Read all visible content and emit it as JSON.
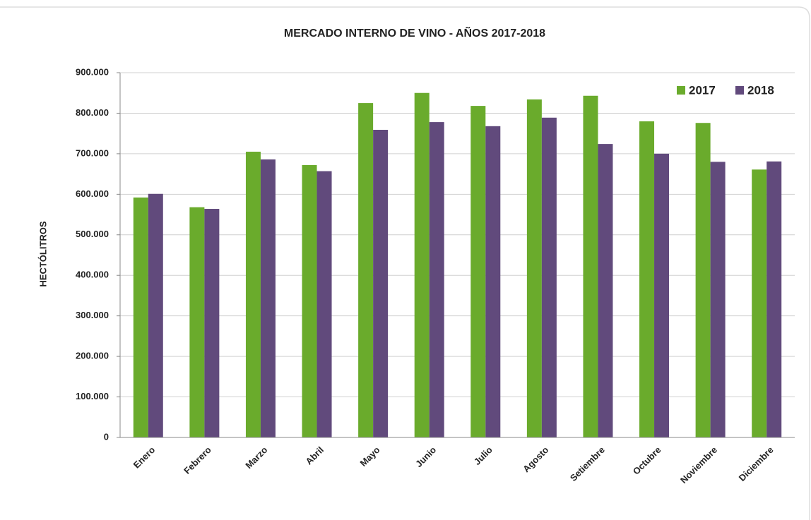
{
  "chart_data": {
    "type": "bar",
    "title": "MERCADO INTERNO DE VINO - AÑOS 2017-2018",
    "ylabel": "HECTÓLITROS",
    "categories": [
      "Enero",
      "Febrero",
      "Marzo",
      "Abril",
      "Mayo",
      "Junio",
      "Julio",
      "Agosto",
      "Setiembre",
      "Octubre",
      "Noviembre",
      "Diciembre"
    ],
    "series": [
      {
        "name": "2017",
        "color": "#6aab2c",
        "values": [
          592000,
          568000,
          705000,
          672000,
          825000,
          850000,
          818000,
          834000,
          843000,
          780000,
          776000,
          661000
        ]
      },
      {
        "name": "2018",
        "color": "#614a7c",
        "values": [
          601000,
          564000,
          686000,
          657000,
          759000,
          778000,
          768000,
          789000,
          724000,
          700000,
          680000,
          681000
        ]
      }
    ],
    "ylim": [
      0,
      900000
    ],
    "yticks": [
      0,
      {
        "value": 100000,
        "label": "100.000"
      },
      {
        "value": 200000,
        "label": "200.000"
      },
      {
        "value": 300000,
        "label": "300.000"
      },
      {
        "value": 400000,
        "label": "400.000"
      },
      {
        "value": 500000,
        "label": "500.000"
      },
      {
        "value": 600000,
        "label": "600.000"
      },
      {
        "value": 700000,
        "label": "700.000"
      },
      {
        "value": 800000,
        "label": "800.000"
      },
      {
        "value": 900000,
        "label": "900.000"
      }
    ],
    "grid": true,
    "legend": "top-right"
  }
}
